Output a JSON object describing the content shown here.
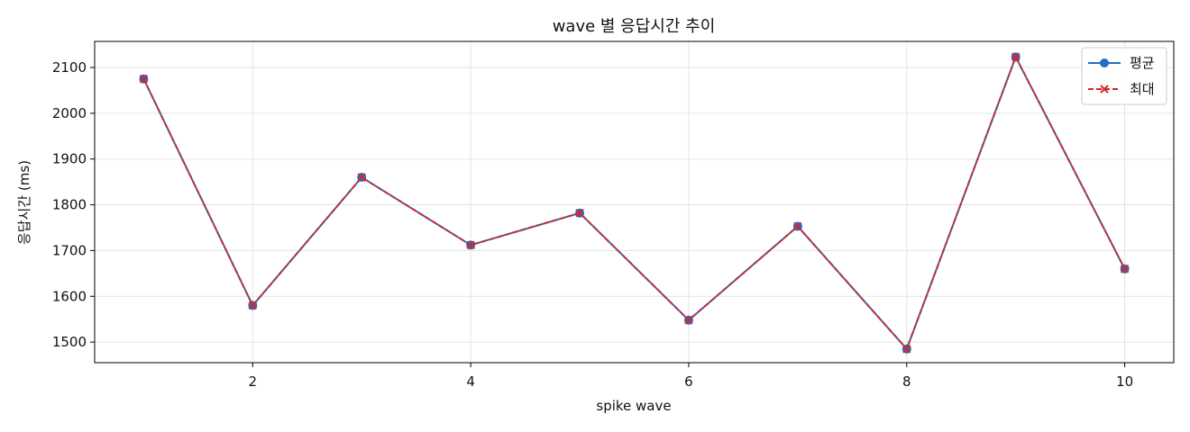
{
  "chart_data": {
    "type": "line",
    "title": "wave 별 응답시간 추이",
    "xlabel": "spike wave",
    "ylabel": "응답시간 (ms)",
    "x": [
      1,
      2,
      3,
      4,
      5,
      6,
      7,
      8,
      9,
      10
    ],
    "xlim": [
      0.55,
      10.45
    ],
    "ylim": [
      1455,
      2157
    ],
    "xticks": [
      2,
      4,
      6,
      8,
      10
    ],
    "yticks": [
      1500,
      1600,
      1700,
      1800,
      1900,
      2000,
      2100
    ],
    "grid": true,
    "legend_position": "top-right",
    "series": [
      {
        "name": "평균",
        "color": "#1f6fc5",
        "style": "solid",
        "marker": "circle",
        "values": [
          2075,
          1580,
          1860,
          1712,
          1782,
          1548,
          1753,
          1485,
          2123,
          1660
        ]
      },
      {
        "name": "최대",
        "color": "#d62728",
        "style": "dashed",
        "marker": "x",
        "values": [
          2075,
          1580,
          1860,
          1712,
          1782,
          1548,
          1753,
          1485,
          2123,
          1660
        ]
      }
    ]
  }
}
